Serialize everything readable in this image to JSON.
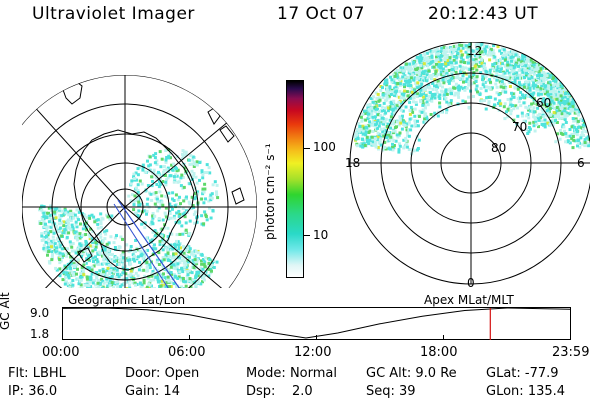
{
  "header": {
    "title": "Ultraviolet Imager",
    "date": "17 Oct 07",
    "time": "20:12:43 UT"
  },
  "colorbar": {
    "unit_label": "photon cm⁻² s⁻¹",
    "ticks": [
      {
        "label": "100",
        "value": 100
      },
      {
        "label": "10",
        "value": 10
      }
    ]
  },
  "right_map": {
    "clock_labels": [
      "12",
      "18",
      "6",
      "0"
    ],
    "lat_labels": [
      "60",
      "70",
      "80"
    ]
  },
  "timeline": {
    "y_label": "GC Alt",
    "y_ticks": [
      "9.0",
      "1.8"
    ],
    "left_title": "Geographic Lat/Lon",
    "right_title": "Apex  MLat/MLT",
    "x_ticks": [
      "00:00",
      "06:00",
      "12:00",
      "18:00",
      "23:59"
    ],
    "current_marker_hours": 20.21,
    "altitude_points": [
      [
        0,
        8.9
      ],
      [
        2,
        9.0
      ],
      [
        4,
        8.6
      ],
      [
        6,
        7.4
      ],
      [
        8,
        5.4
      ],
      [
        10,
        3.0
      ],
      [
        11.5,
        1.8
      ],
      [
        13,
        3.0
      ],
      [
        15,
        5.2
      ],
      [
        17,
        7.0
      ],
      [
        19,
        8.4
      ],
      [
        21,
        9.0
      ],
      [
        23.98,
        8.7
      ]
    ]
  },
  "info": {
    "row1": [
      {
        "label": "Flt:",
        "value": "LBHL"
      },
      {
        "label": "Door:",
        "value": "Open"
      },
      {
        "label": "Mode:",
        "value": "Normal"
      },
      {
        "label": "GC Alt:",
        "value": "9.0 Re"
      },
      {
        "label": "GLat:",
        "value": "-77.9"
      }
    ],
    "row2": [
      {
        "label": "IP:",
        "value": "36.0"
      },
      {
        "label": "Gain:",
        "value": "14"
      },
      {
        "label": "Dsp:",
        "value": "2.0"
      },
      {
        "label": "Seq:",
        "value": "39"
      },
      {
        "label": "GLon:",
        "value": "135.4"
      }
    ]
  },
  "colors": {
    "cyan": "#4fe3dc",
    "pale": "#bff3ef",
    "green": "#5dd86a",
    "yellow": "#d7e83a",
    "marker": "#d41010"
  }
}
